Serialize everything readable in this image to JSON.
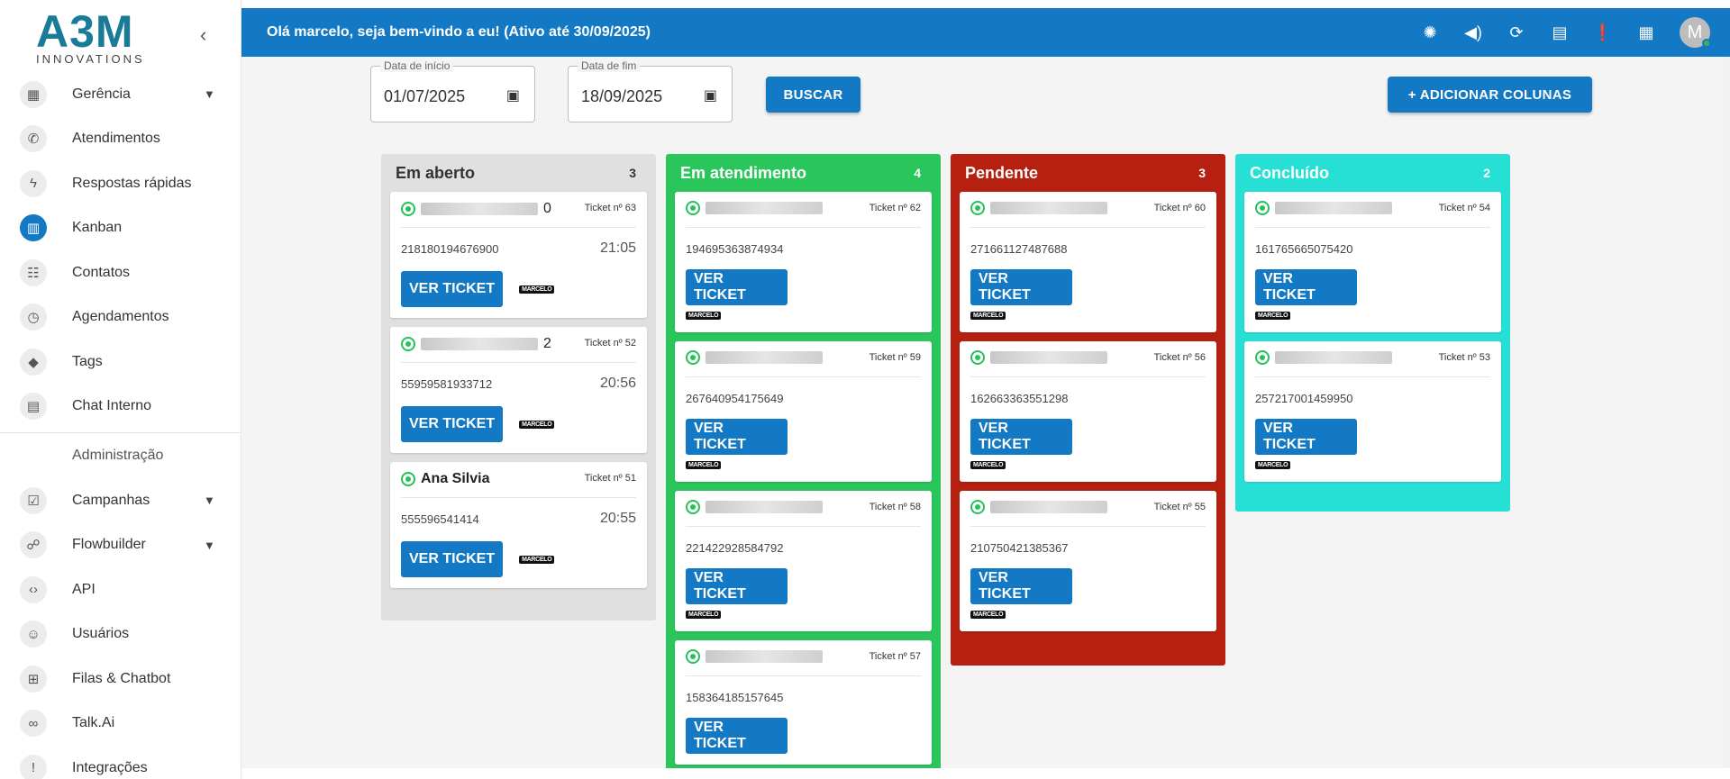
{
  "sidebar": {
    "logo_main": "A3M",
    "logo_sub": "INNOVATIONS",
    "collapse_icon": "‹",
    "items": [
      {
        "label": "Gerência",
        "icon": "▦",
        "chevron": true
      },
      {
        "label": "Atendimentos",
        "icon": "✆"
      },
      {
        "label": "Respostas rápidas",
        "icon": "ϟ"
      },
      {
        "label": "Kanban",
        "icon": "▥",
        "active": true
      },
      {
        "label": "Contatos",
        "icon": "☷"
      },
      {
        "label": "Agendamentos",
        "icon": "◷"
      },
      {
        "label": "Tags",
        "icon": "◆"
      },
      {
        "label": "Chat Interno",
        "icon": "▤"
      }
    ],
    "section": "Administração",
    "admin_items": [
      {
        "label": "Campanhas",
        "icon": "☑",
        "chevron": true
      },
      {
        "label": "Flowbuilder",
        "icon": "☍",
        "chevron": true
      },
      {
        "label": "API",
        "icon": "‹›"
      },
      {
        "label": "Usuários",
        "icon": "☺"
      },
      {
        "label": "Filas & Chatbot",
        "icon": "⊞"
      },
      {
        "label": "Talk.Ai",
        "icon": "∞"
      },
      {
        "label": "Integrações",
        "icon": "!"
      }
    ]
  },
  "topbar": {
    "greeting": "Olá marcelo, seja bem-vindo a eu! (Ativo até 30/09/2025)",
    "avatar_letter": "M"
  },
  "filters": {
    "start_label": "Data de início",
    "start_value": "01/07/2025",
    "end_label": "Data de fim",
    "end_value": "18/09/2025",
    "search_button": "BUSCAR",
    "add_columns_button": "+ ADICIONAR COLUNAS"
  },
  "colors": {
    "primary": "#1379c4",
    "lane_open": "#e0e0e0",
    "lane_attending": "#2ac65c",
    "lane_pending": "#b52010",
    "lane_done": "#26e0d6"
  },
  "lanes": [
    {
      "title": "Em aberto",
      "count": "3",
      "cards": [
        {
          "name": "0",
          "blurred": true,
          "ticket": "Ticket nº 63",
          "phone": "218180194676900",
          "time": "21:05",
          "button": "VER TICKET",
          "tag": "MARCELO"
        },
        {
          "name": "2",
          "blurred": true,
          "ticket": "Ticket nº 52",
          "phone": "55959581933712",
          "time": "20:56",
          "button": "VER TICKET",
          "tag": "MARCELO"
        },
        {
          "name": "Ana Silvia",
          "blurred": false,
          "ticket": "Ticket nº 51",
          "phone": "555596541414",
          "time": "20:55",
          "button": "VER TICKET",
          "tag": "MARCELO"
        }
      ]
    },
    {
      "title": "Em atendimento",
      "count": "4",
      "cards": [
        {
          "name": "",
          "blurred": true,
          "ticket": "Ticket nº 62",
          "phone": "194695363874934",
          "time": "",
          "button": "VER TICKET",
          "tag": "MARCELO"
        },
        {
          "name": "",
          "blurred": true,
          "ticket": "Ticket nº 59",
          "phone": "267640954175649",
          "time": "",
          "button": "VER TICKET",
          "tag": "MARCELO"
        },
        {
          "name": "",
          "blurred": true,
          "ticket": "Ticket nº 58",
          "phone": "221422928584792",
          "time": "",
          "button": "VER TICKET",
          "tag": "MARCELO"
        },
        {
          "name": "",
          "blurred": true,
          "ticket": "Ticket nº 57",
          "phone": "158364185157645",
          "time": "",
          "button": "VER TICKET",
          "tag": ""
        }
      ]
    },
    {
      "title": "Pendente",
      "count": "3",
      "cards": [
        {
          "name": "",
          "blurred": true,
          "ticket": "Ticket nº 60",
          "phone": "271661127487688",
          "time": "",
          "button": "VER TICKET",
          "tag": "MARCELO"
        },
        {
          "name": "",
          "blurred": true,
          "ticket": "Ticket nº 56",
          "phone": "162663363551298",
          "time": "",
          "button": "VER TICKET",
          "tag": "MARCELO"
        },
        {
          "name": "",
          "blurred": true,
          "ticket": "Ticket nº 55",
          "phone": "210750421385367",
          "time": "",
          "button": "VER TICKET",
          "tag": "MARCELO"
        }
      ]
    },
    {
      "title": "Concluído",
      "count": "2",
      "cards": [
        {
          "name": "",
          "blurred": true,
          "ticket": "Ticket nº 54",
          "phone": "161765665075420",
          "time": "",
          "button": "VER TICKET",
          "tag": "MARCELO"
        },
        {
          "name": "",
          "blurred": true,
          "ticket": "Ticket nº 53",
          "phone": "257217001459950",
          "time": "",
          "button": "VER TICKET",
          "tag": "MARCELO"
        }
      ]
    }
  ]
}
